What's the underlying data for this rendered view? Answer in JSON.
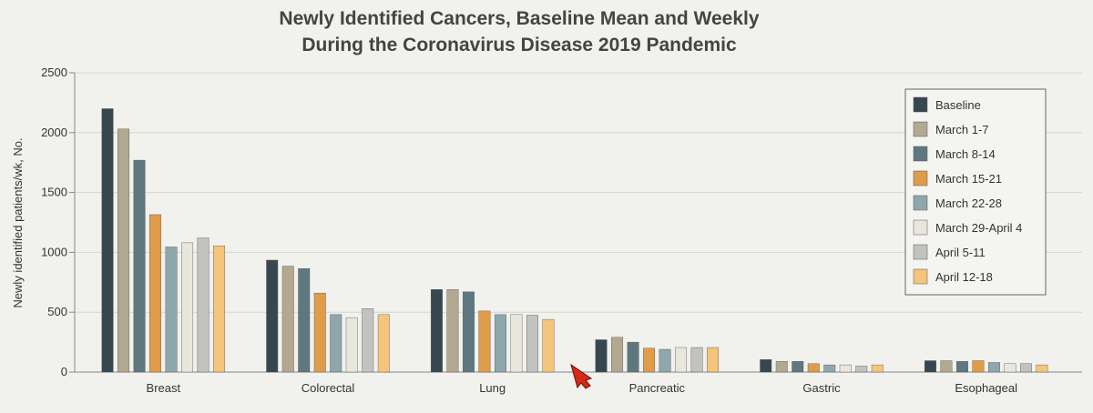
{
  "chart_data": {
    "type": "bar",
    "title": [
      "Newly Identified Cancers, Baseline Mean and Weekly",
      "During the Coronavirus Disease 2019 Pandemic"
    ],
    "xlabel": "",
    "ylabel": "Newly identified patients/wk, No.",
    "ylim": [
      0,
      2500
    ],
    "yticks": [
      0,
      500,
      1000,
      1500,
      2000,
      2500
    ],
    "grid": true,
    "legend_position": "right",
    "categories": [
      "Breast",
      "Colorectal",
      "Lung",
      "Pancreatic",
      "Gastric",
      "Esophageal"
    ],
    "series": [
      {
        "name": "Baseline",
        "color": "#37474f",
        "values": [
          2200,
          935,
          690,
          270,
          105,
          95
        ]
      },
      {
        "name": "March 1-7",
        "color": "#b3a890",
        "values": [
          2030,
          885,
          690,
          290,
          90,
          95
        ]
      },
      {
        "name": "March 8-14",
        "color": "#5f7880",
        "values": [
          1770,
          865,
          670,
          250,
          90,
          90
        ]
      },
      {
        "name": "March 15-21",
        "color": "#e09c48",
        "values": [
          1315,
          660,
          510,
          200,
          70,
          95
        ]
      },
      {
        "name": "March 22-28",
        "color": "#8ea7ac",
        "values": [
          1045,
          480,
          480,
          190,
          60,
          80
        ]
      },
      {
        "name": "March 29-April 4",
        "color": "#e9e7dc",
        "values": [
          1080,
          455,
          480,
          205,
          60,
          70
        ]
      },
      {
        "name": "April 5-11",
        "color": "#c2c2c0",
        "values": [
          1120,
          530,
          475,
          205,
          50,
          70
        ]
      },
      {
        "name": "April 12-18",
        "color": "#f4c57a",
        "values": [
          1055,
          480,
          440,
          205,
          60,
          60
        ]
      }
    ]
  }
}
